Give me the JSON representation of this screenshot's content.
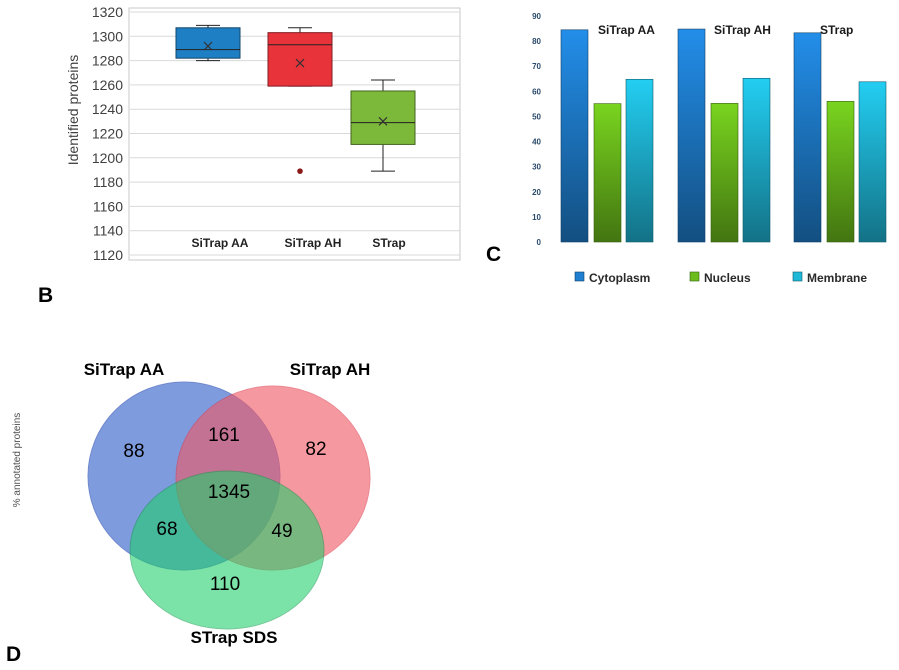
{
  "panel_labels": {
    "b": "B",
    "c": "C",
    "d": "D"
  },
  "side_label": "% annotated proteins",
  "colors": {
    "box_aa": "#1e7fc4",
    "box_ah": "#e8333b",
    "box_st": "#7cb83a",
    "cyto": "#1f7fd0",
    "nuc": "#6cbd1c",
    "mem": "#1fb8d8",
    "venn_aa": "#5a7fd6",
    "venn_ah": "#f05a66",
    "venn_sds": "#1fcf6a"
  },
  "chart_data": [
    {
      "type": "box",
      "title": "",
      "ylabel": "Identified proteins",
      "ylim": [
        1120,
        1320
      ],
      "yticks": [
        1120,
        1140,
        1160,
        1180,
        1200,
        1220,
        1240,
        1260,
        1280,
        1300,
        1320
      ],
      "categories": [
        "SiTrap AA",
        "SiTrap AH",
        "STrap"
      ],
      "boxes": [
        {
          "name": "SiTrap AA",
          "min": 1280,
          "q1": 1282,
          "median": 1289,
          "mean": 1292,
          "q3": 1307,
          "max": 1309,
          "outliers": []
        },
        {
          "name": "SiTrap AH",
          "min": 1259,
          "q1": 1259,
          "median": 1293,
          "mean": 1278,
          "q3": 1303,
          "max": 1307,
          "outliers": [
            1189
          ]
        },
        {
          "name": "STrap",
          "min": 1189,
          "q1": 1211,
          "median": 1229,
          "mean": 1230,
          "q3": 1255,
          "max": 1264,
          "outliers": []
        }
      ]
    },
    {
      "type": "bar",
      "title": "",
      "ylabel": "% annotated proteins",
      "ylim": [
        0,
        90
      ],
      "yticks": [
        0,
        10,
        20,
        30,
        40,
        50,
        60,
        70,
        80,
        90
      ],
      "categories": [
        "SiTrap AA",
        "SiTrap AH",
        "STrap"
      ],
      "series": [
        {
          "name": "Cytoplasm",
          "values": [
            84.5,
            84.8,
            83.3
          ]
        },
        {
          "name": "Nucleus",
          "values": [
            55.1,
            55.2,
            56.0
          ]
        },
        {
          "name": "Membrane",
          "values": [
            64.8,
            65.2,
            63.8
          ]
        }
      ],
      "legend": "bottom"
    },
    {
      "type": "venn",
      "sets": [
        "SiTrap AA",
        "SiTrap AH",
        "STrap SDS"
      ],
      "regions": {
        "aa_only": 88,
        "ah_only": 82,
        "sds_only": 110,
        "aa_ah": 161,
        "aa_sds": 68,
        "ah_sds": 49,
        "all": 1345
      }
    }
  ]
}
